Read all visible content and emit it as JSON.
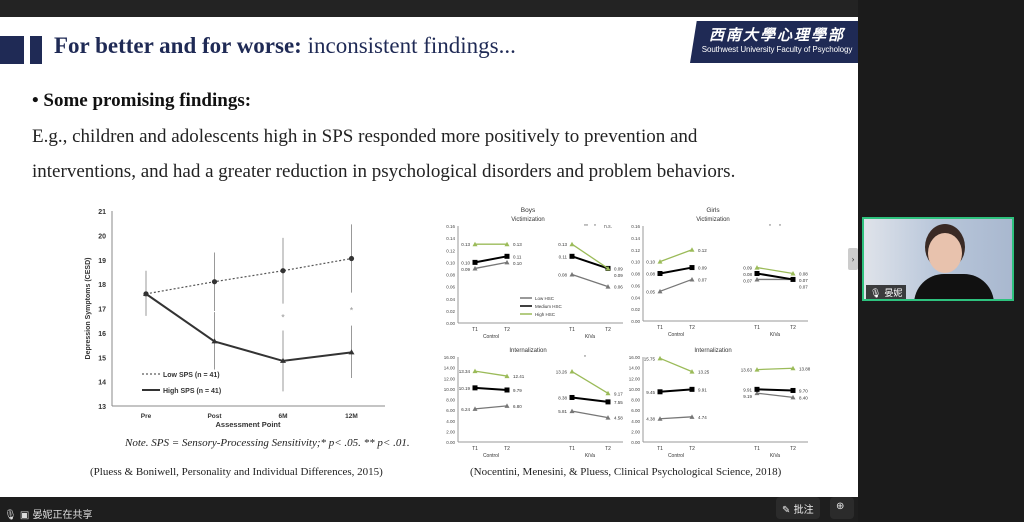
{
  "slide": {
    "title_bold": "For better and for worse:",
    "title_rest": " inconsistent findings...",
    "logo_cn": "西南大學心理學部",
    "logo_en": "Southwest University Faculty of Psychology",
    "bullet": "• Some promising findings:",
    "para_line1": "E.g., children and adolescents high in SPS responded more positively to prevention and",
    "para_line2": "interventions, and had a greater reduction in psychological disorders and problem behaviors.",
    "note": "Note. SPS = Sensory-Processing Sensitivity;* p< .05.  ** p< .01.",
    "caption_left": "(Pluess & Boniwell, Personality and Individual Differences, 2015)",
    "caption_right": "(Nocentini, Menesini, & Pluess,  Clinical Psychological Science, 2018)"
  },
  "chart_data": [
    {
      "type": "line",
      "xlabel": "Assessment Point",
      "ylabel": "Depression Symptoms (CESD)",
      "categories": [
        "Pre",
        "Post",
        "6M",
        "12M"
      ],
      "ylim": [
        13,
        21
      ],
      "yticks": [
        13,
        14,
        15,
        16,
        17,
        18,
        19,
        20,
        21
      ],
      "series": [
        {
          "name": "Low SPS (n = 41)",
          "values": [
            17.6,
            18.1,
            18.55,
            19.05
          ],
          "err_low": [
            16.7,
            16.9,
            17.2,
            17.65
          ],
          "err_high": [
            18.55,
            19.3,
            19.9,
            20.45
          ],
          "style": "dotted",
          "marker": "circle"
        },
        {
          "name": "High SPS (n = 41)",
          "values": [
            17.6,
            15.65,
            14.85,
            15.2
          ],
          "err_low": [
            16.8,
            14.5,
            13.6,
            14.15
          ],
          "err_high": [
            18.5,
            16.85,
            16.1,
            16.3
          ],
          "style": "solid",
          "marker": "triangle"
        }
      ],
      "annotations": [
        "*",
        "*"
      ]
    },
    {
      "type": "line",
      "title": "Boys",
      "subtitle": "Victimization",
      "ylim": [
        0,
        0.16
      ],
      "yticks": [
        "0.00",
        "0.02",
        "0.04",
        "0.06",
        "0.08",
        "0.10",
        "0.12",
        "0.14",
        "0.16"
      ],
      "groups": [
        "Control",
        "KiVa"
      ],
      "x": [
        "T1",
        "T2"
      ],
      "series": [
        {
          "name": "Low HSC",
          "control": [
            0.09,
            0.1
          ],
          "kiva": [
            0.08,
            0.06
          ]
        },
        {
          "name": "Medium HSC",
          "control": [
            0.1,
            0.11
          ],
          "kiva": [
            0.11,
            0.09
          ]
        },
        {
          "name": "High HSC",
          "control": [
            0.13,
            0.13
          ],
          "kiva": [
            0.13,
            0.09
          ]
        }
      ],
      "legend": "center",
      "annotations": [
        "**",
        "*",
        "n.s."
      ]
    },
    {
      "type": "line",
      "title": "Girls",
      "subtitle": "Victimization",
      "ylim": [
        0,
        0.16
      ],
      "yticks": [
        "0.00",
        "0.02",
        "0.04",
        "0.06",
        "0.08",
        "0.10",
        "0.12",
        "0.14",
        "0.16"
      ],
      "groups": [
        "Control",
        "KiVa"
      ],
      "x": [
        "T1",
        "T2"
      ],
      "series": [
        {
          "name": "Low HSC",
          "control": [
            0.05,
            0.07
          ],
          "kiva": [
            0.07,
            0.07
          ]
        },
        {
          "name": "Medium HSC",
          "control": [
            0.08,
            0.09
          ],
          "kiva": [
            0.08,
            0.07
          ]
        },
        {
          "name": "High HSC",
          "control": [
            0.1,
            0.12
          ],
          "kiva": [
            0.09,
            0.08
          ]
        }
      ],
      "annotations": [
        "*",
        "*"
      ]
    },
    {
      "type": "line",
      "subtitle": "Internalization",
      "ylim": [
        0,
        16
      ],
      "yticks": [
        "0.00",
        "2.00",
        "4.00",
        "6.00",
        "8.00",
        "10.00",
        "12.00",
        "14.00",
        "16.00"
      ],
      "groups": [
        "Control",
        "KiVa"
      ],
      "x": [
        "T1",
        "T2"
      ],
      "series": [
        {
          "name": "Low HSC",
          "control": [
            6.24,
            6.8
          ],
          "kiva": [
            5.81,
            4.58
          ]
        },
        {
          "name": "Medium HSC",
          "control": [
            10.19,
            9.79
          ],
          "kiva": [
            8.38,
            7.55
          ]
        },
        {
          "name": "High HSC",
          "control": [
            13.34,
            12.41
          ],
          "kiva": [
            13.26,
            9.17
          ]
        }
      ],
      "annotations": [
        "*"
      ]
    },
    {
      "type": "line",
      "subtitle": "Internalization",
      "ylim": [
        0,
        16
      ],
      "yticks": [
        "0.00",
        "2.00",
        "4.00",
        "6.00",
        "8.00",
        "10.00",
        "12.00",
        "14.00",
        "16.00"
      ],
      "groups": [
        "Control",
        "KiVa"
      ],
      "x": [
        "T1",
        "T2"
      ],
      "series": [
        {
          "name": "Low HSC",
          "control": [
            4.38,
            4.74
          ],
          "kiva": [
            9.19,
            8.4
          ]
        },
        {
          "name": "Medium HSC",
          "control": [
            9.45,
            9.91
          ],
          "kiva": [
            9.91,
            9.7
          ]
        },
        {
          "name": "High HSC",
          "control": [
            15.75,
            13.25
          ],
          "kiva": [
            13.63,
            13.88
          ]
        }
      ]
    }
  ],
  "series_colors": {
    "Low HSC": "#777777",
    "Medium HSC": "#000000",
    "High HSC": "#9bbb59"
  },
  "meeting": {
    "participant_name": "晏妮",
    "sharing_status": "晏妮正在共享",
    "annotate_label": "批注",
    "zoom_icon": "zoom-in-icon",
    "side_arrow": "›"
  }
}
